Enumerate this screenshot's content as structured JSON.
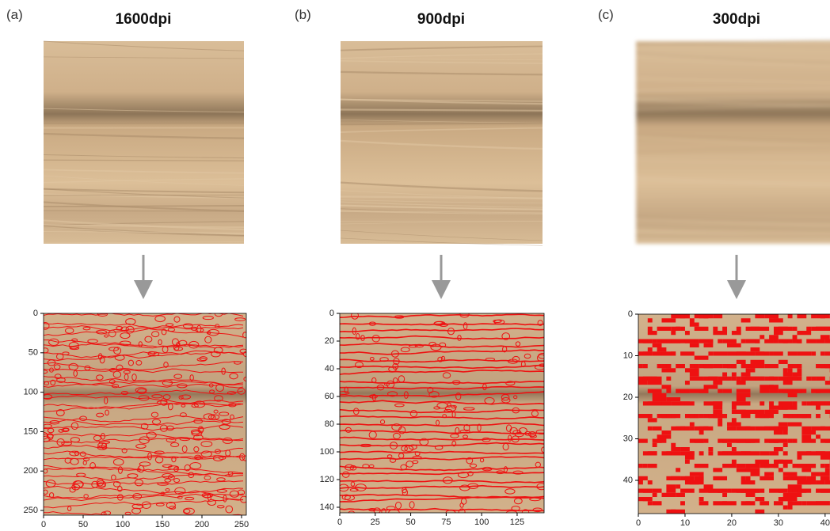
{
  "panels": [
    {
      "label": "(a)",
      "title": "1600dpi",
      "plot": {
        "xlim": [
          0,
          256
        ],
        "ylim": [
          0,
          256
        ],
        "xticks": [
          0,
          50,
          100,
          150,
          200,
          250
        ],
        "yticks": [
          0,
          50,
          100,
          150,
          200,
          250
        ]
      }
    },
    {
      "label": "(b)",
      "title": "900dpi",
      "plot": {
        "xlim": [
          0,
          144
        ],
        "ylim": [
          0,
          144
        ],
        "xticks": [
          0,
          25,
          50,
          75,
          100,
          125
        ],
        "yticks": [
          0,
          20,
          40,
          60,
          80,
          100,
          120,
          140
        ]
      }
    },
    {
      "label": "(c)",
      "title": "300dpi",
      "plot": {
        "xlim": [
          0,
          48
        ],
        "ylim": [
          0,
          48
        ],
        "xticks": [
          0,
          10,
          20,
          30,
          40
        ],
        "yticks": [
          0,
          10,
          20,
          30,
          40
        ]
      }
    }
  ]
}
